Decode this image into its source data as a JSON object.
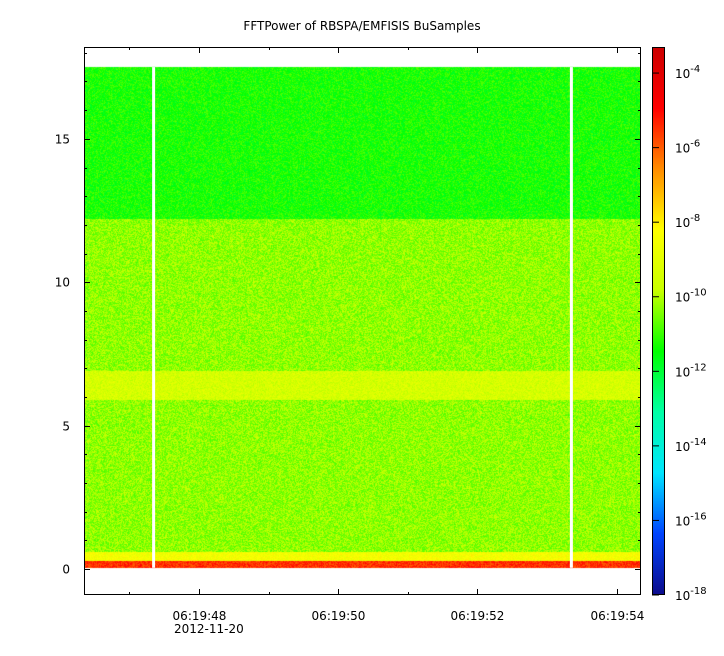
{
  "colors": {
    "background": "#ffffff",
    "axis": "#000000",
    "data_gap": "#ffffff",
    "colorscale": [
      "#0c0c8c",
      "#0044ff",
      "#00e5ff",
      "#00ffa6",
      "#00ff00",
      "#c8ff00",
      "#ffff00",
      "#ff8c00",
      "#ff0000",
      "#cc0000"
    ]
  },
  "chart_data": {
    "type": "heatmap",
    "title": "FFTPower of RBSPA/EMFISIS  BuSamples",
    "xlabel": "",
    "ylabel": "",
    "colorbar_label": "",
    "date_label": "2012-11-20",
    "x_ticks": [
      {
        "time_s": 47.95,
        "label": "06:19:48"
      },
      {
        "time_s": 49.95,
        "label": "06:19:50"
      },
      {
        "time_s": 51.95,
        "label": "06:19:52"
      },
      {
        "time_s": 53.95,
        "label": "06:19:54"
      }
    ],
    "xlim_seconds": [
      46.3,
      54.3
    ],
    "ylim": [
      -0.9,
      18.2
    ],
    "y_ticks": [
      0,
      5,
      10,
      15
    ],
    "colorbar": {
      "scale": "log",
      "range": [
        1e-18,
        0.0005
      ],
      "ticks": [
        {
          "base": "10",
          "exp": "-4"
        },
        {
          "base": "10",
          "exp": "-6"
        },
        {
          "base": "10",
          "exp": "-8"
        },
        {
          "base": "10",
          "exp": "-10"
        },
        {
          "base": "10",
          "exp": "-12"
        },
        {
          "base": "10",
          "exp": "-14"
        },
        {
          "base": "10",
          "exp": "-16"
        },
        {
          "base": "10",
          "exp": "-18"
        }
      ]
    },
    "data_extent_y": [
      0.05,
      17.5
    ],
    "data_gaps_seconds": [
      47.3,
      53.3
    ],
    "frequency_bands": [
      {
        "y_range": [
          0.05,
          0.3
        ],
        "log10_power": -5.5
      },
      {
        "y_range": [
          0.3,
          0.6
        ],
        "log10_power": -8.5
      },
      {
        "y_range": [
          0.6,
          12.2
        ],
        "log10_power": -10.3
      },
      {
        "y_range": [
          5.9,
          6.9
        ],
        "log10_power": -9.4
      },
      {
        "y_range": [
          12.2,
          17.5
        ],
        "log10_power": -11.3
      }
    ]
  }
}
